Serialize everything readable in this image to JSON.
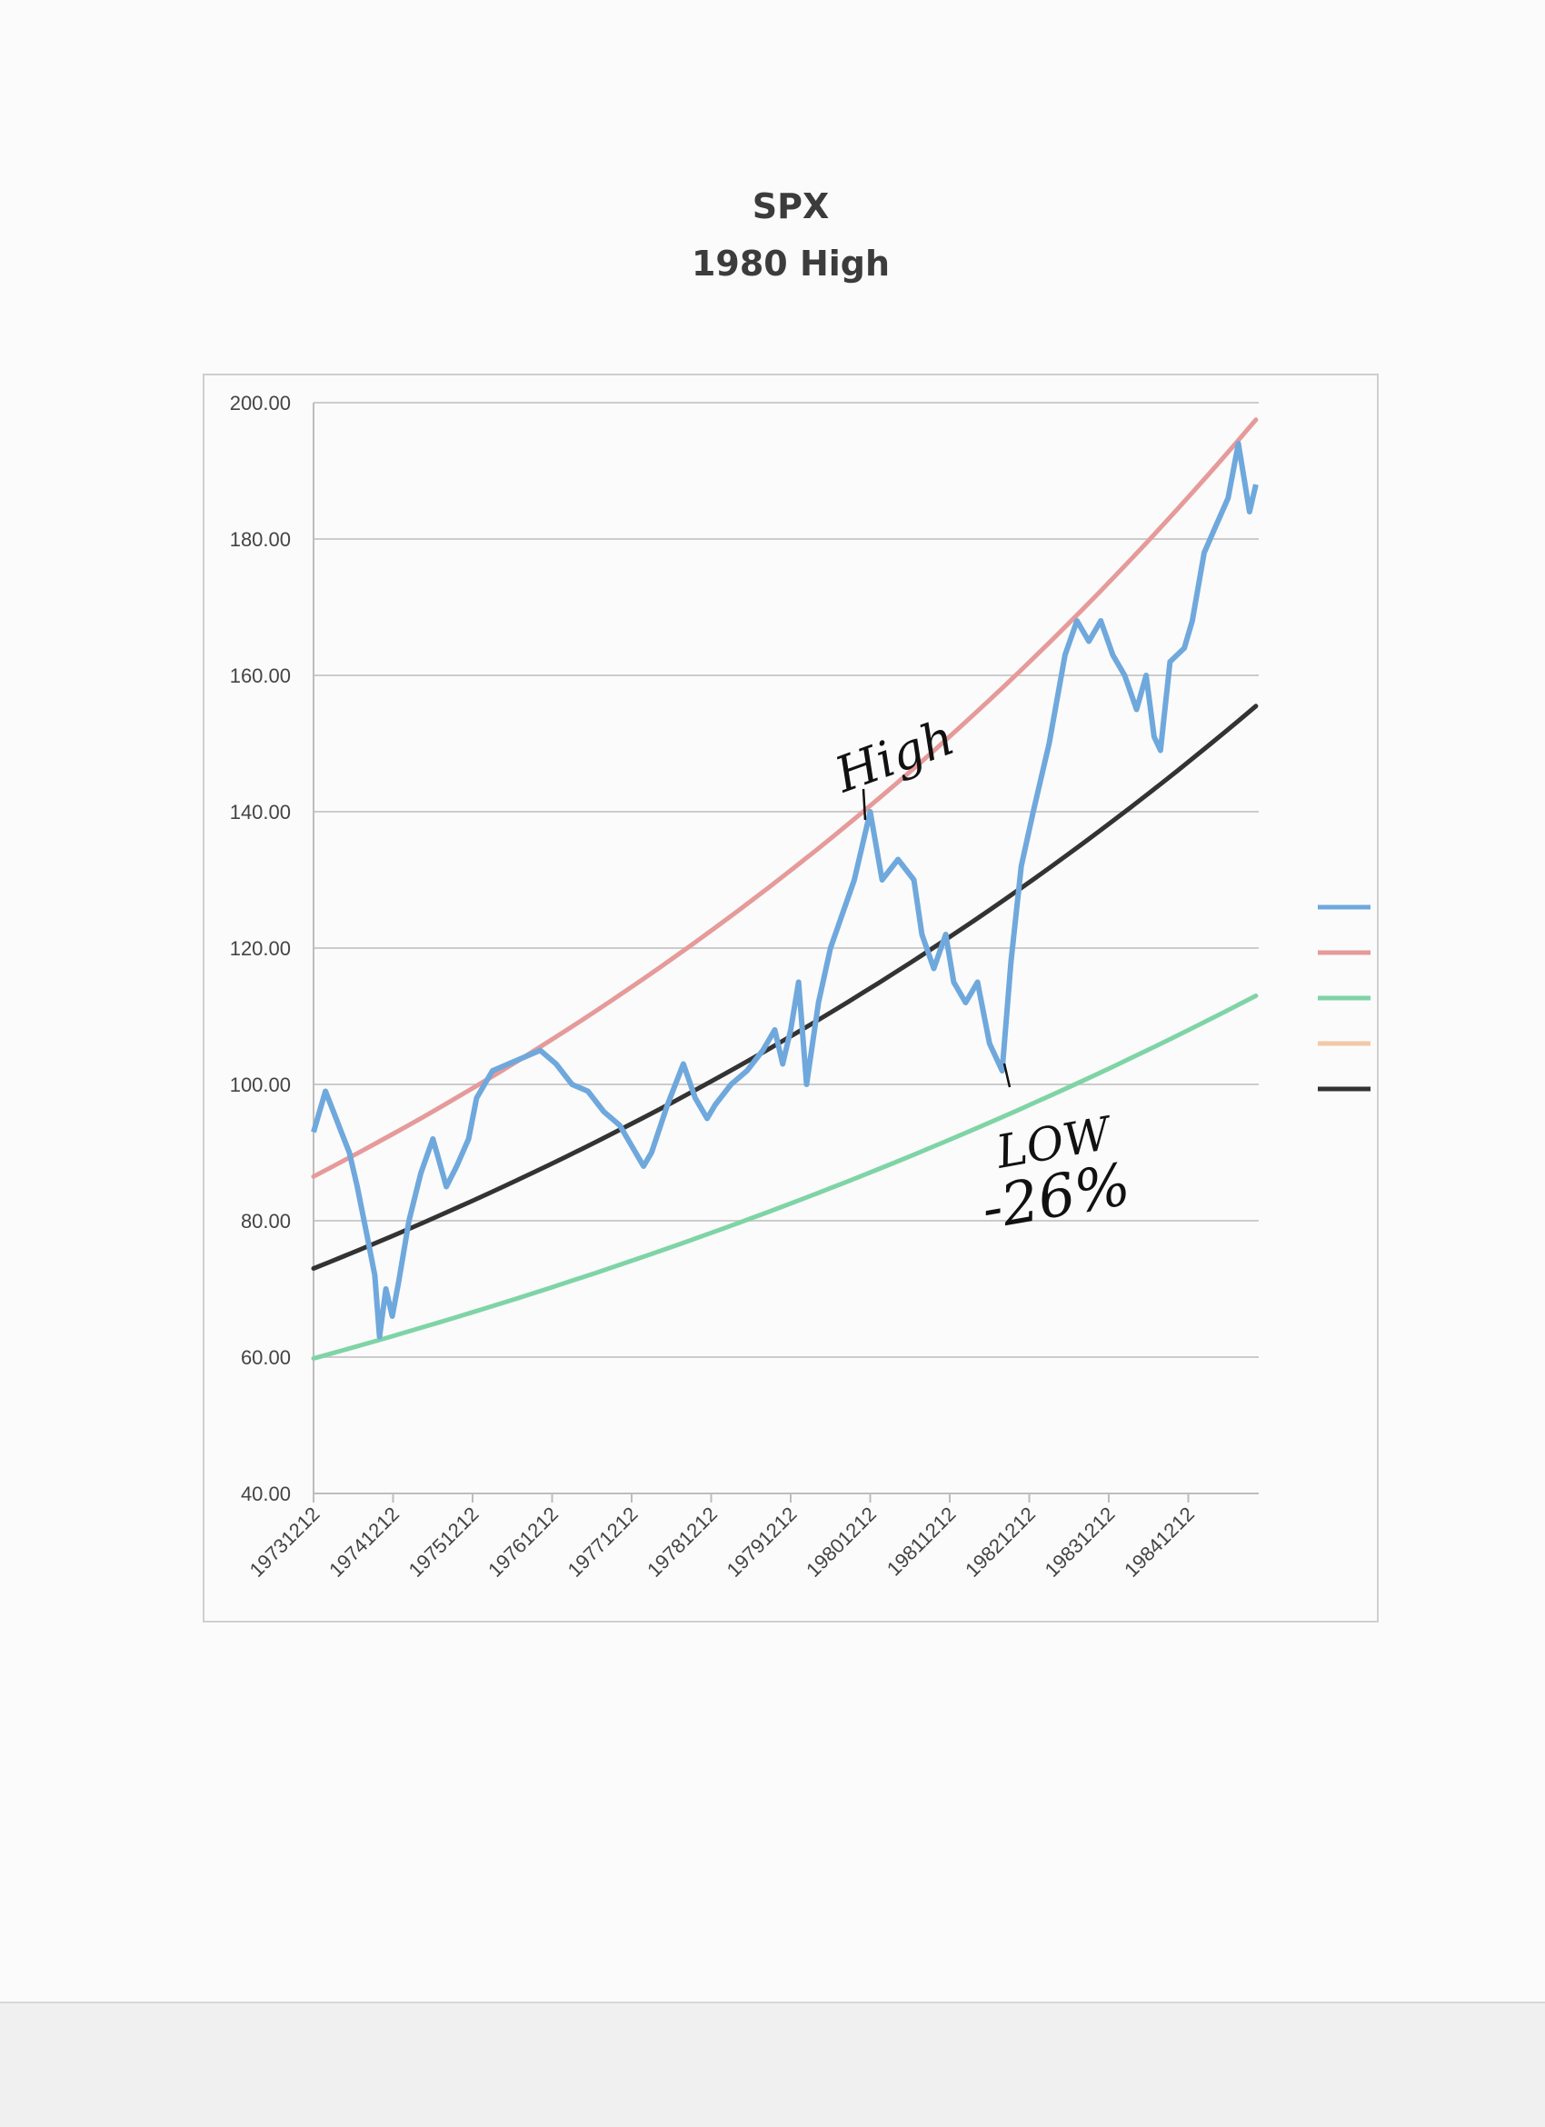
{
  "chart_data": {
    "type": "line",
    "title": "SPX",
    "subtitle": "1980 High",
    "xlabel": "",
    "ylabel": "",
    "ylim": [
      40,
      200
    ],
    "x_start": 1973.95,
    "x_end": 1985.8,
    "yticks": [
      "200.00",
      "180.00",
      "160.00",
      "140.00",
      "120.00",
      "100.00",
      "80.00",
      "60.00",
      "40.00"
    ],
    "xticks": [
      "19731212",
      "19741212",
      "19751212",
      "19761212",
      "19771212",
      "19781212",
      "19791212",
      "19801212",
      "19811212",
      "19821212",
      "19831212",
      "19841212"
    ],
    "grid": "horizontal",
    "legend_position": "right, cropped",
    "series": [
      {
        "color": "#6fa8dc",
        "points": [
          [
            1973.95,
            93
          ],
          [
            1974.1,
            99
          ],
          [
            1974.2,
            96
          ],
          [
            1974.3,
            93
          ],
          [
            1974.4,
            90
          ],
          [
            1974.5,
            85
          ],
          [
            1974.62,
            78
          ],
          [
            1974.72,
            72
          ],
          [
            1974.78,
            63
          ],
          [
            1974.86,
            70
          ],
          [
            1974.94,
            66
          ],
          [
            1975.02,
            71
          ],
          [
            1975.15,
            80
          ],
          [
            1975.3,
            87
          ],
          [
            1975.45,
            92
          ],
          [
            1975.5,
            90
          ],
          [
            1975.62,
            85
          ],
          [
            1975.75,
            88
          ],
          [
            1975.9,
            92
          ],
          [
            1976.0,
            98
          ],
          [
            1976.2,
            102
          ],
          [
            1976.4,
            103
          ],
          [
            1976.6,
            104
          ],
          [
            1976.8,
            105
          ],
          [
            1977.0,
            103
          ],
          [
            1977.2,
            100
          ],
          [
            1977.4,
            99
          ],
          [
            1977.6,
            96
          ],
          [
            1977.8,
            94
          ],
          [
            1977.95,
            91
          ],
          [
            1978.1,
            88
          ],
          [
            1978.2,
            90
          ],
          [
            1978.4,
            97
          ],
          [
            1978.6,
            103
          ],
          [
            1978.75,
            98
          ],
          [
            1978.9,
            95
          ],
          [
            1979.0,
            97
          ],
          [
            1979.2,
            100
          ],
          [
            1979.4,
            102
          ],
          [
            1979.6,
            105
          ],
          [
            1979.75,
            108
          ],
          [
            1979.85,
            103
          ],
          [
            1979.95,
            108
          ],
          [
            1980.05,
            115
          ],
          [
            1980.15,
            100
          ],
          [
            1980.3,
            112
          ],
          [
            1980.45,
            120
          ],
          [
            1980.6,
            125
          ],
          [
            1980.75,
            130
          ],
          [
            1980.95,
            140
          ],
          [
            1981.1,
            130
          ],
          [
            1981.3,
            133
          ],
          [
            1981.5,
            130
          ],
          [
            1981.6,
            122
          ],
          [
            1981.75,
            117
          ],
          [
            1981.9,
            122
          ],
          [
            1982.0,
            115
          ],
          [
            1982.15,
            112
          ],
          [
            1982.3,
            115
          ],
          [
            1982.45,
            106
          ],
          [
            1982.61,
            102
          ],
          [
            1982.72,
            118
          ],
          [
            1982.85,
            132
          ],
          [
            1983.0,
            140
          ],
          [
            1983.2,
            150
          ],
          [
            1983.4,
            163
          ],
          [
            1983.55,
            168
          ],
          [
            1983.7,
            165
          ],
          [
            1983.85,
            168
          ],
          [
            1984.0,
            163
          ],
          [
            1984.15,
            160
          ],
          [
            1984.3,
            155
          ],
          [
            1984.42,
            160
          ],
          [
            1984.52,
            151
          ],
          [
            1984.6,
            149
          ],
          [
            1984.72,
            162
          ],
          [
            1984.9,
            164
          ],
          [
            1985.0,
            168
          ],
          [
            1985.15,
            178
          ],
          [
            1985.3,
            182
          ],
          [
            1985.45,
            186
          ],
          [
            1985.58,
            194
          ],
          [
            1985.72,
            184
          ],
          [
            1985.8,
            188
          ]
        ]
      },
      {
        "color": "#e69a9a",
        "start": 86.5,
        "end": 197.5
      },
      {
        "color": "#7fd4a6",
        "start": 59.8,
        "end": 113.0
      },
      {
        "color": "#333333",
        "start": 73.0,
        "end": 155.5
      }
    ],
    "legend": [
      {
        "color": "#6fa8dc"
      },
      {
        "color": "#e69a9a"
      },
      {
        "color": "#7fd4a6"
      },
      {
        "color": "#f2c9a8"
      },
      {
        "color": "#333333"
      }
    ],
    "annotations": [
      {
        "text": "High",
        "at": [
          1980.95,
          140
        ]
      },
      {
        "text": "LOW",
        "at": [
          1982.61,
          101
        ]
      },
      {
        "text": "-26%",
        "at": [
          1982.61,
          101
        ]
      }
    ]
  }
}
